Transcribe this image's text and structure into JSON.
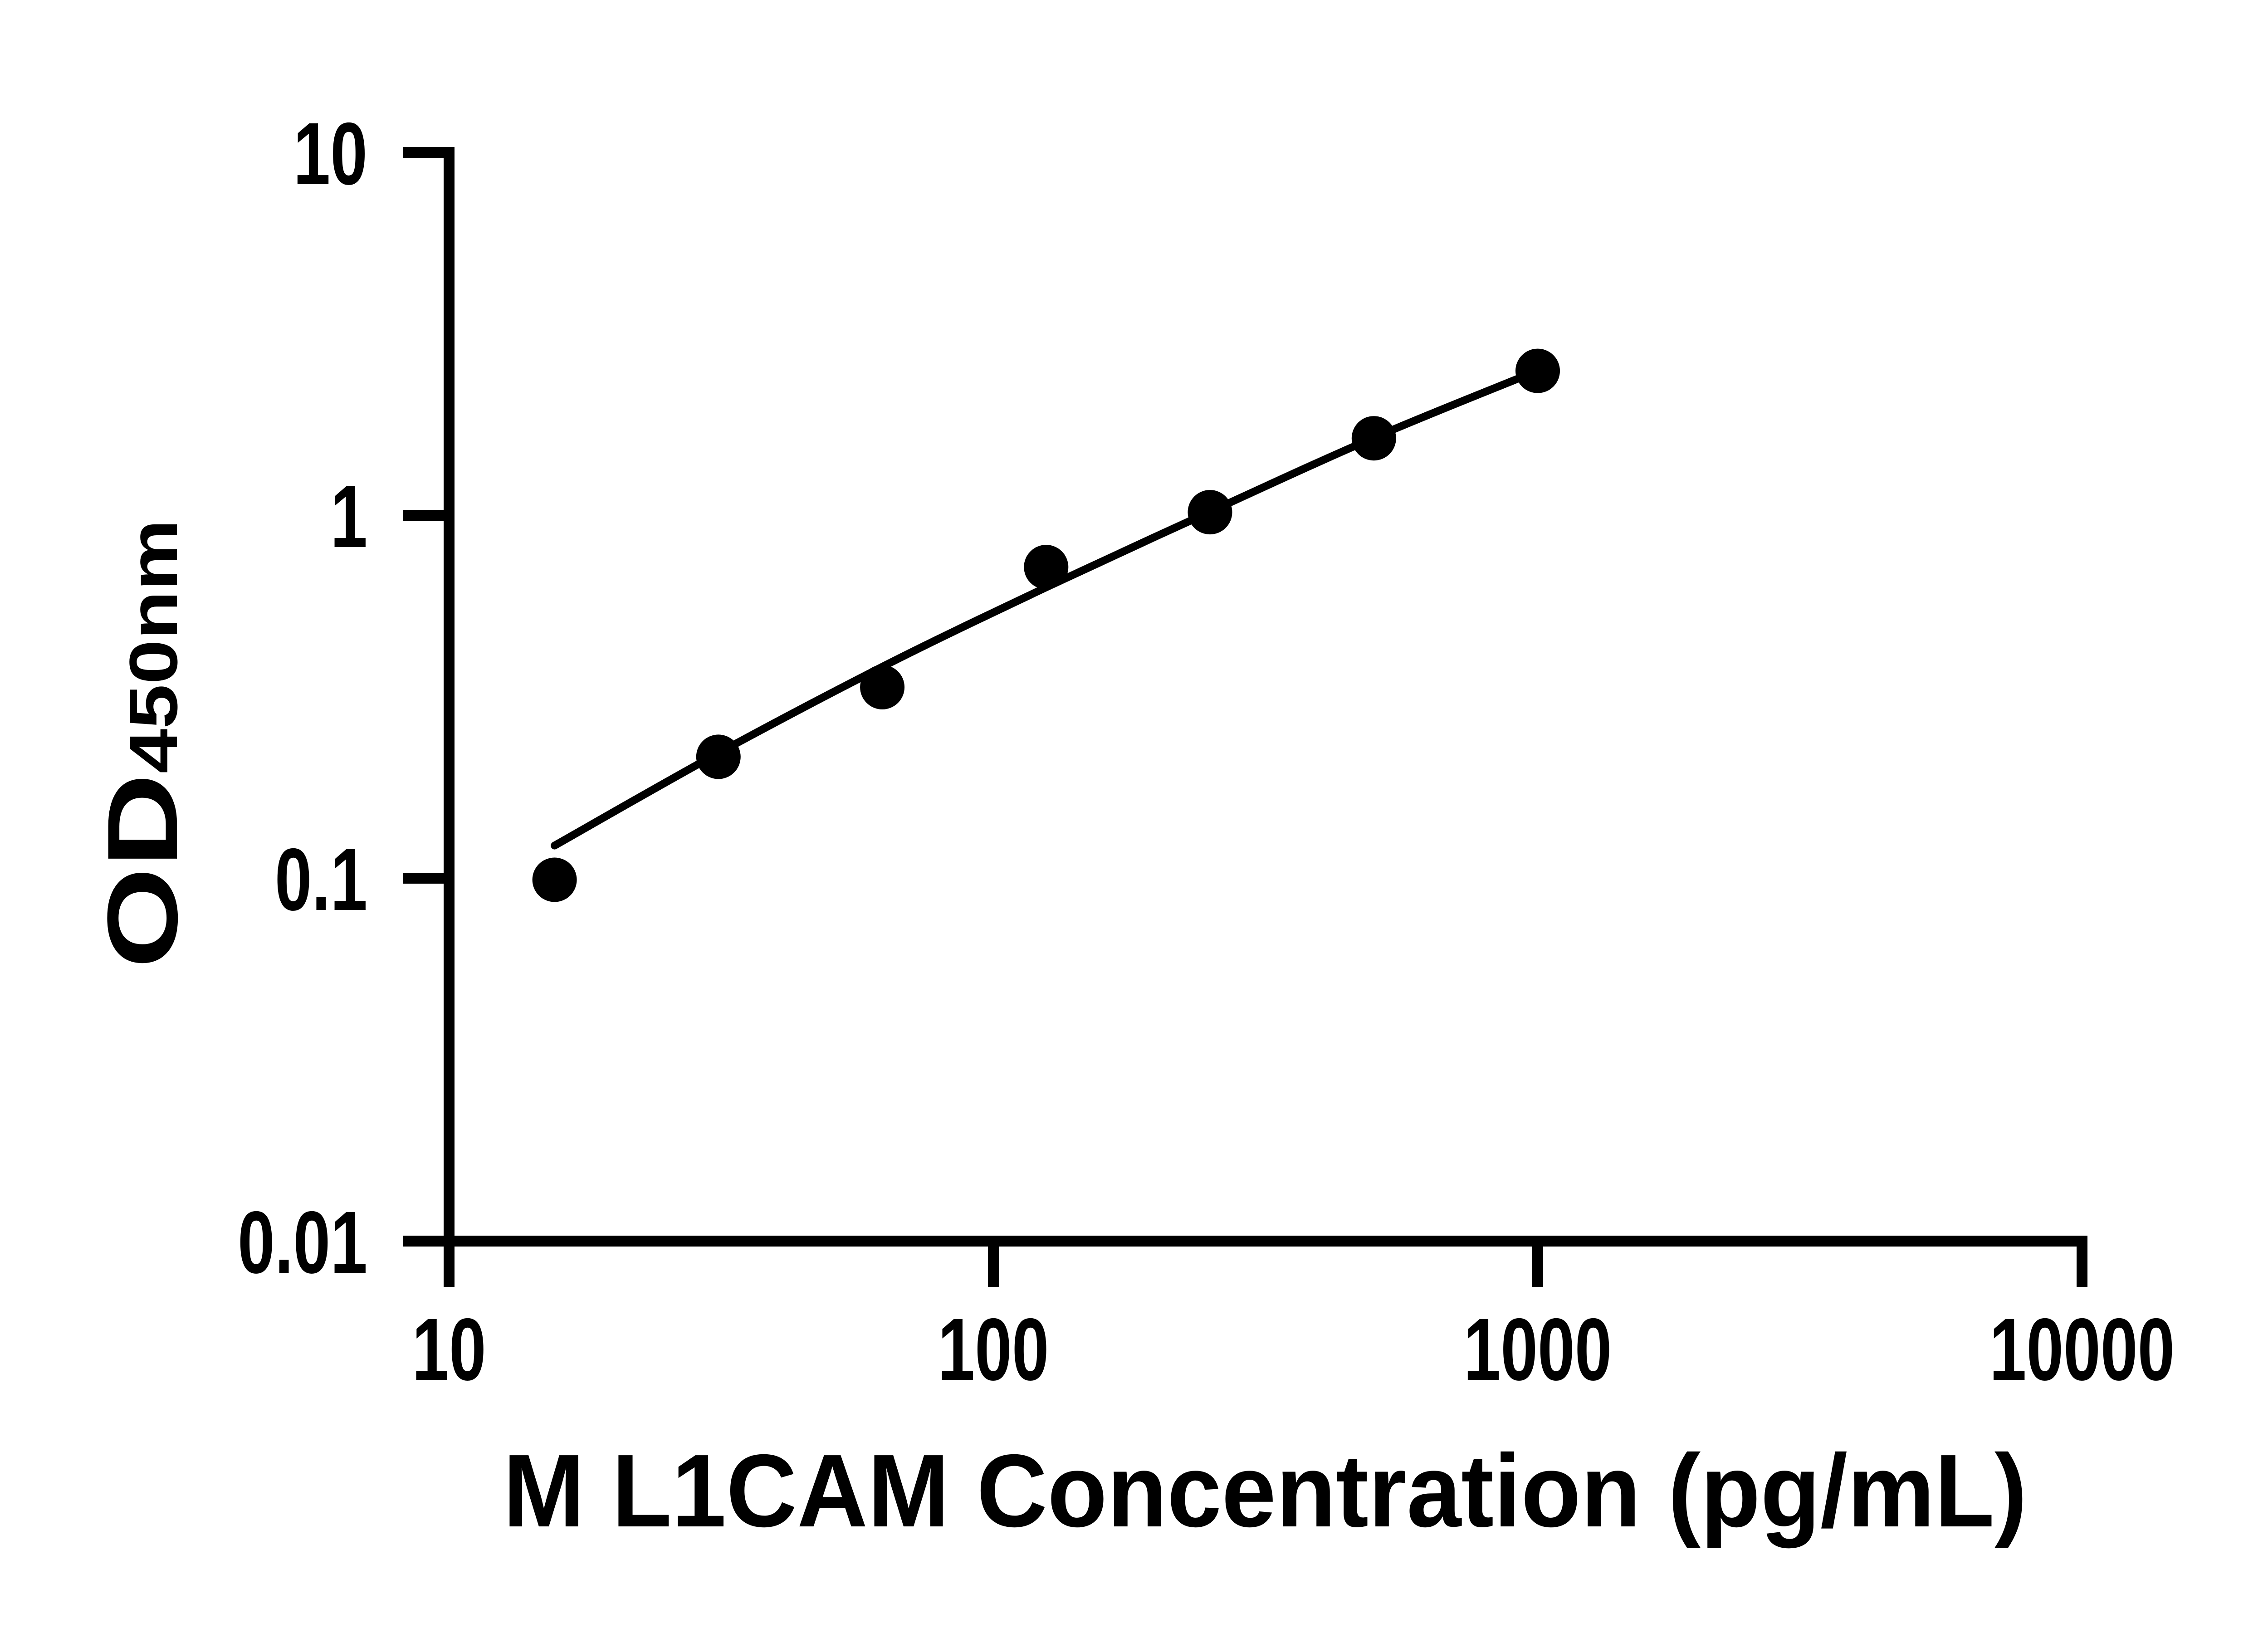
{
  "figure": {
    "background_color": "#ffffff",
    "ink_color": "#000000"
  },
  "chart_data": {
    "type": "scatter",
    "title": "",
    "xlabel": "M L1CAM Concentration (pg/mL)",
    "ylabel": "OD450nm",
    "ylabel_main": "OD",
    "ylabel_sub": "450nm",
    "x_scale": "log10",
    "y_scale": "log10",
    "xlim": [
      10,
      10000
    ],
    "ylim": [
      0.01,
      10
    ],
    "x_ticks": [
      10,
      100,
      1000,
      10000
    ],
    "x_tick_labels": [
      "10",
      "100",
      "1000",
      "10000"
    ],
    "y_ticks": [
      10,
      1,
      0.1,
      0.01
    ],
    "y_tick_labels": [
      "10",
      "1",
      "0.1",
      "0.01"
    ],
    "grid": false,
    "legend": null,
    "marker_color": "#000000",
    "line_color": "#000000",
    "series": [
      {
        "name": "standard-points",
        "kind": "scatter",
        "points": [
          {
            "x": 15.625,
            "od": 0.099
          },
          {
            "x": 31.25,
            "od": 0.216
          },
          {
            "x": 62.5,
            "od": 0.336
          },
          {
            "x": 125,
            "od": 0.72
          },
          {
            "x": 250,
            "od": 1.02
          },
          {
            "x": 500,
            "od": 1.63
          },
          {
            "x": 1000,
            "od": 2.5
          }
        ]
      },
      {
        "name": "4pl-fit-curve",
        "kind": "line",
        "points": [
          {
            "x": 15.625,
            "od": 0.123
          },
          {
            "x": 31.25,
            "od": 0.221
          },
          {
            "x": 62.5,
            "od": 0.382
          },
          {
            "x": 125,
            "od": 0.633
          },
          {
            "x": 250,
            "od": 1.023
          },
          {
            "x": 500,
            "od": 1.636
          },
          {
            "x": 1000,
            "od": 2.505
          }
        ]
      }
    ]
  }
}
